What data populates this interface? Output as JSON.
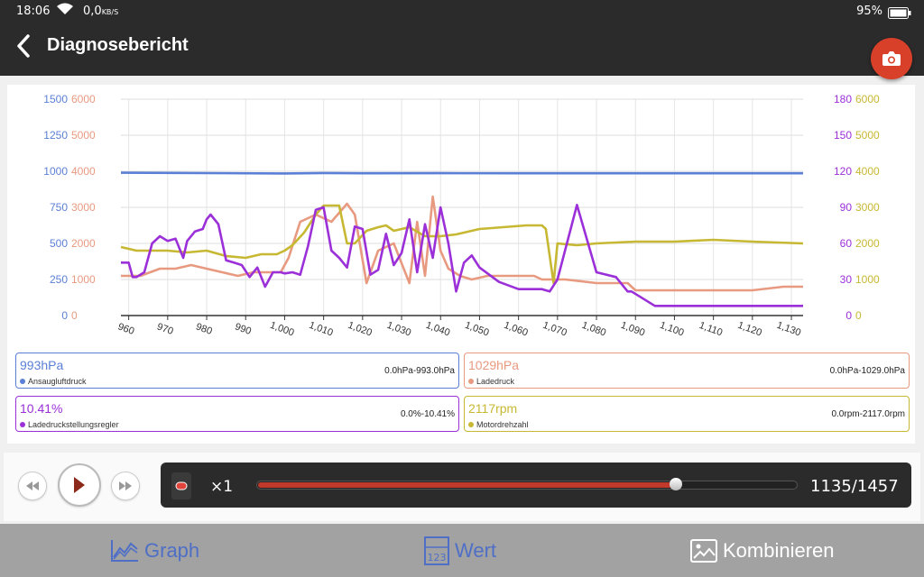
{
  "status": {
    "time": "18:06",
    "net_value": "0,0",
    "net_unit": "KB/S",
    "battery": "95%"
  },
  "header": {
    "title": "Diagnosebericht",
    "back_icon": "chevron-left-icon",
    "camera_icon": "camera-icon"
  },
  "colors": {
    "blue": "#5b7fd6",
    "salmon": "#e89a80",
    "purple": "#9b30d9",
    "olive": "#c7b833",
    "accent_red": "#d9402a"
  },
  "chart_data": {
    "type": "line",
    "x_ticks": [
      "960",
      "970",
      "980",
      "990",
      "1,000",
      "1,010",
      "1,020",
      "1,030",
      "1,040",
      "1,050",
      "1,060",
      "1,070",
      "1,080",
      "1,090",
      "1,100",
      "1,110",
      "1,120",
      "1,130"
    ],
    "xlim": [
      958,
      1133
    ],
    "left_axis_blue": {
      "ticks": [
        "0",
        "250",
        "500",
        "750",
        "1000",
        "1250",
        "1500"
      ],
      "ylim": [
        0,
        1500
      ]
    },
    "left_axis_salmon": {
      "ticks": [
        "0",
        "1000",
        "2000",
        "3000",
        "4000",
        "5000",
        "6000"
      ],
      "ylim": [
        0,
        6000
      ]
    },
    "right_axis_purple": {
      "ticks": [
        "0",
        "30",
        "60",
        "90",
        "120",
        "150",
        "180"
      ],
      "ylim": [
        0,
        180
      ]
    },
    "right_axis_olive": {
      "ticks": [
        "0",
        "1000",
        "2000",
        "3000",
        "4000",
        "5000",
        "6000"
      ],
      "ylim": [
        0,
        6000
      ]
    },
    "grid": true,
    "series": [
      {
        "name": "Ansaugluftdruck",
        "axis": "blue",
        "x": [
          958,
          1000,
          1010,
          1020,
          1040,
          1060,
          1090,
          1133
        ],
        "y": [
          990,
          985,
          988,
          986,
          987,
          986,
          986,
          986
        ]
      },
      {
        "name": "Ladedruck",
        "axis": "salmon",
        "x": [
          958,
          963,
          968,
          972,
          976,
          980,
          984,
          988,
          992,
          996,
          999,
          1001,
          1004,
          1008,
          1012,
          1016,
          1018,
          1021,
          1024,
          1028,
          1032,
          1034,
          1036,
          1038,
          1040,
          1042,
          1045,
          1048,
          1052,
          1058,
          1064,
          1066,
          1068,
          1072,
          1080,
          1088,
          1090,
          1100,
          1110,
          1120,
          1128,
          1133
        ],
        "y": [
          1100,
          1100,
          1300,
          1300,
          1400,
          1300,
          1200,
          1100,
          1200,
          1200,
          1200,
          1600,
          2600,
          2800,
          2600,
          3100,
          2800,
          900,
          1800,
          2000,
          900,
          2600,
          1100,
          3300,
          1800,
          1300,
          1100,
          1000,
          1100,
          1100,
          1100,
          1000,
          1000,
          1000,
          900,
          900,
          700,
          700,
          700,
          700,
          800,
          800
        ]
      },
      {
        "name": "Ladedruckstellungsregler",
        "axis": "purple",
        "x": [
          958,
          960,
          961,
          962,
          964,
          966,
          968,
          970,
          972,
          974,
          975,
          977,
          979,
          980,
          981,
          983,
          985,
          987,
          989,
          991,
          993,
          995,
          997,
          999,
          1000,
          1002,
          1004,
          1006,
          1008,
          1010,
          1012,
          1014,
          1016,
          1018,
          1020,
          1022,
          1024,
          1026,
          1028,
          1030,
          1032,
          1034,
          1036,
          1038,
          1040,
          1042,
          1044,
          1046,
          1048,
          1050,
          1055,
          1060,
          1064,
          1066,
          1068,
          1070,
          1075,
          1080,
          1085,
          1088,
          1089,
          1095,
          1100,
          1110,
          1120,
          1133
        ],
        "y": [
          44,
          44,
          32,
          32,
          36,
          60,
          66,
          62,
          64,
          48,
          62,
          70,
          72,
          80,
          84,
          76,
          46,
          44,
          42,
          32,
          40,
          24,
          36,
          36,
          35,
          36,
          34,
          58,
          88,
          90,
          54,
          48,
          40,
          74,
          72,
          34,
          38,
          68,
          42,
          52,
          80,
          36,
          76,
          48,
          90,
          60,
          20,
          44,
          50,
          40,
          28,
          22,
          22,
          22,
          20,
          30,
          92,
          36,
          32,
          20,
          20,
          8,
          8,
          8,
          8,
          8
        ]
      },
      {
        "name": "Motordrehzahl",
        "axis": "olive",
        "x": [
          958,
          962,
          966,
          970,
          975,
          980,
          985,
          990,
          994,
          998,
          1000,
          1002,
          1005,
          1008,
          1010,
          1014,
          1016,
          1018,
          1021,
          1024,
          1026,
          1028,
          1032,
          1036,
          1040,
          1044,
          1050,
          1056,
          1062,
          1066,
          1067,
          1069,
          1070,
          1075,
          1080,
          1090,
          1100,
          1110,
          1120,
          1133
        ],
        "y": [
          1900,
          1800,
          1800,
          1800,
          1750,
          1800,
          1650,
          1600,
          1700,
          1700,
          1800,
          1950,
          2300,
          2800,
          3050,
          3050,
          2000,
          2000,
          2350,
          2450,
          2500,
          2350,
          2450,
          2200,
          2200,
          2250,
          2400,
          2450,
          2500,
          2500,
          2400,
          900,
          2000,
          1950,
          2000,
          2050,
          2050,
          2100,
          2050,
          2000
        ]
      }
    ]
  },
  "cards": [
    {
      "value": "993hPa",
      "label": "Ansaugluftdruck",
      "range": "0.0hPa-993.0hPa"
    },
    {
      "value": "1029hPa",
      "label": "Ladedruck",
      "range": "0.0hPa-1029.0hPa"
    },
    {
      "value": "10.41%",
      "label": "Ladedruckstellungsregler",
      "range": "0.0%-10.41%"
    },
    {
      "value": "2117rpm",
      "label": "Motordrehzahl",
      "range": "0.0rpm-2117.0rpm"
    }
  ],
  "player": {
    "speed": "×1",
    "counter": "1135/1457",
    "progress": 0.779
  },
  "nav": {
    "tabs": [
      {
        "label": "Graph",
        "icon": "graph-icon"
      },
      {
        "label": "Wert",
        "icon": "value-123-icon"
      },
      {
        "label": "Kombinieren",
        "icon": "image-combine-icon"
      }
    ]
  }
}
